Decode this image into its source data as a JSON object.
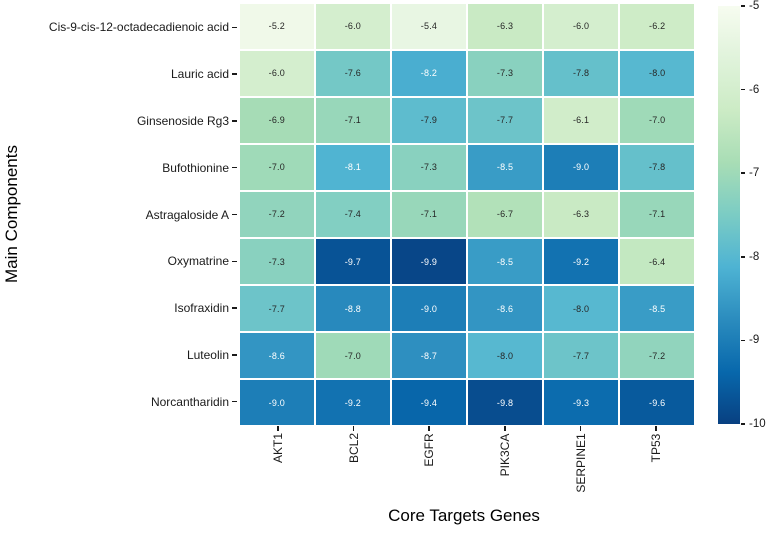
{
  "chart_data": {
    "type": "heatmap",
    "title": "",
    "xlabel": "Core Targets Genes",
    "ylabel": "Main Components",
    "rows": [
      "Cis-9-cis-12-octadecadienoic acid",
      "Lauric acid",
      "Ginsenoside Rg3",
      "Bufothionine",
      "Astragaloside A",
      "Oxymatrine",
      "Isofraxidin",
      "Luteolin",
      "Norcantharidin"
    ],
    "columns": [
      "AKT1",
      "BCL2",
      "EGFR",
      "PIK3CA",
      "SERPINE1",
      "TP53"
    ],
    "values": [
      [
        -5.2,
        -6.0,
        -5.4,
        -6.3,
        -6.0,
        -6.2
      ],
      [
        -6.0,
        -7.6,
        -8.2,
        -7.3,
        -7.8,
        -8.0
      ],
      [
        -6.9,
        -7.1,
        -7.9,
        -7.7,
        -6.1,
        -7.0
      ],
      [
        -7.0,
        -8.1,
        -7.3,
        -8.5,
        -9.0,
        -7.8
      ],
      [
        -7.2,
        -7.4,
        -7.1,
        -6.7,
        -6.3,
        -7.1
      ],
      [
        -7.3,
        -9.7,
        -9.9,
        -8.5,
        -9.2,
        -6.4
      ],
      [
        -7.7,
        -8.8,
        -9.0,
        -8.6,
        -8.0,
        -8.5
      ],
      [
        -8.6,
        -7.0,
        -8.7,
        -8.0,
        -7.7,
        -7.2
      ],
      [
        -9.0,
        -9.2,
        -9.4,
        -9.8,
        -9.3,
        -9.6
      ]
    ],
    "value_decimals": 1,
    "vmin": -10,
    "vmax": -5,
    "colorbar_ticks": [
      -5,
      -6,
      -7,
      -8,
      -9,
      -10
    ],
    "colorbar_position": "right",
    "colormap": {
      "name": "GnBu",
      "stops": [
        "#f7fcf0",
        "#e0f3db",
        "#ccebc5",
        "#a8ddb5",
        "#7bccc4",
        "#4eb3d3",
        "#2b8cbe",
        "#0868ac",
        "#084081"
      ]
    },
    "grid_line_color": "#ffffff",
    "annotation_colors": {
      "dark": "#262626",
      "light": "#ffffff"
    },
    "tick_color": "#1a1a1a",
    "background": "#ffffff"
  }
}
